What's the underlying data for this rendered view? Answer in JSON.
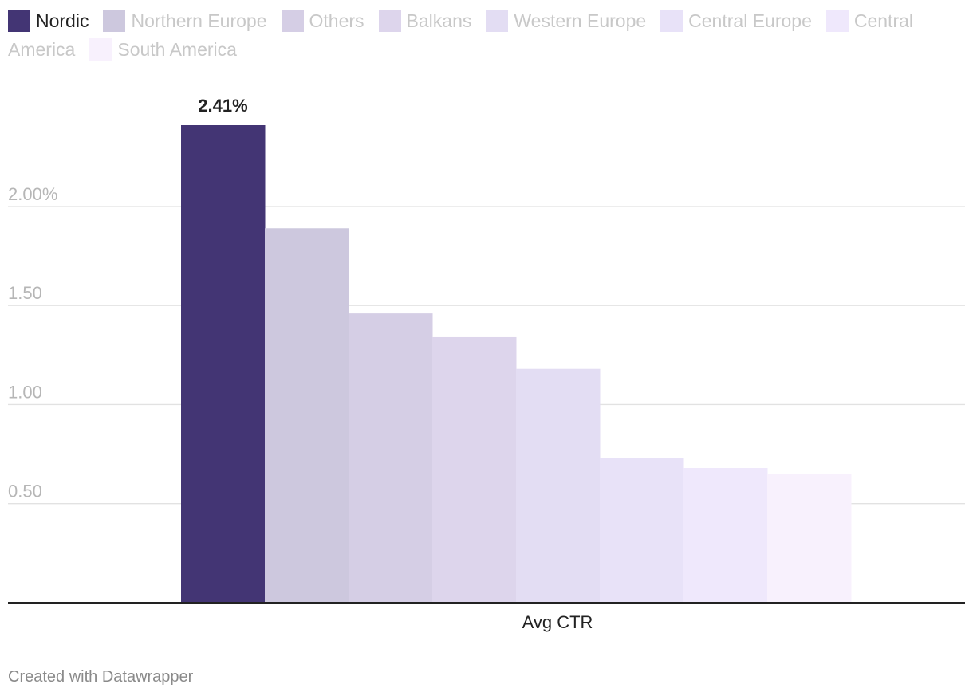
{
  "chart_data": {
    "type": "bar",
    "categories": [
      "Avg CTR"
    ],
    "series": [
      {
        "name": "Nordic",
        "values": [
          2.41
        ],
        "color": "#433574"
      },
      {
        "name": "Northern Europe",
        "values": [
          1.89
        ],
        "color": "#cdc8de"
      },
      {
        "name": "Others",
        "values": [
          1.46
        ],
        "color": "#d5cee5"
      },
      {
        "name": "Balkans",
        "values": [
          1.34
        ],
        "color": "#ddd5ec"
      },
      {
        "name": "Western Europe",
        "values": [
          1.18
        ],
        "color": "#e3ddf3"
      },
      {
        "name": "Central Europe",
        "values": [
          0.73
        ],
        "color": "#e8e2f8"
      },
      {
        "name": "Central America",
        "values": [
          0.68
        ],
        "color": "#efe8fc"
      },
      {
        "name": "South America",
        "values": [
          0.65
        ],
        "color": "#f8f1fd"
      }
    ],
    "highlight_series": "Nordic",
    "data_label": "2.41%",
    "y_ticks": [
      "0.50",
      "1.00",
      "1.50",
      "2.00%"
    ],
    "y_tick_values": [
      0.5,
      1.0,
      1.5,
      2.0
    ],
    "xlabel": "Avg CTR",
    "ylim": [
      0,
      2.41
    ],
    "grid": true,
    "legend_position": "top"
  },
  "footer": {
    "credit": "Created with Datawrapper"
  }
}
